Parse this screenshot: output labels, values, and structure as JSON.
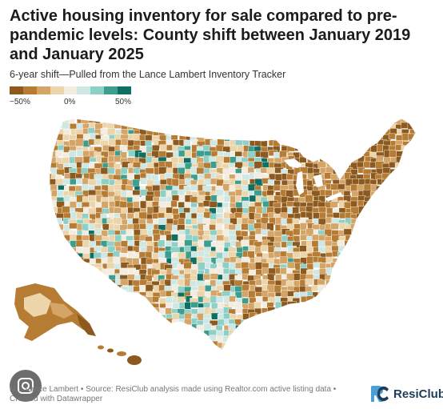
{
  "title": "Active housing inventory for sale compared to pre-pandemic levels: County shift between January 2019 and January 2025",
  "subtitle": "6-year shift—Pulled from the Lance Lambert Inventory Tracker",
  "legend": {
    "min_label": "−50%",
    "mid_label": "0%",
    "max_label": "50%",
    "colors": [
      "#8c5a1e",
      "#b67c34",
      "#d4a566",
      "#ecd5aa",
      "#f3ece0",
      "#cfe8e4",
      "#8fd0c6",
      "#3e9e8e",
      "#0f6f62"
    ]
  },
  "footer": "M... Lance Lambert • Source: ResiClub analysis made using Realtor.com active listing data • Created with Datawrapper",
  "brand": {
    "name": "ResiClub",
    "mark_colors": [
      "#4a9fd4",
      "#1f3d5b"
    ]
  },
  "overlay": {
    "icon": "google-lens-icon"
  }
}
